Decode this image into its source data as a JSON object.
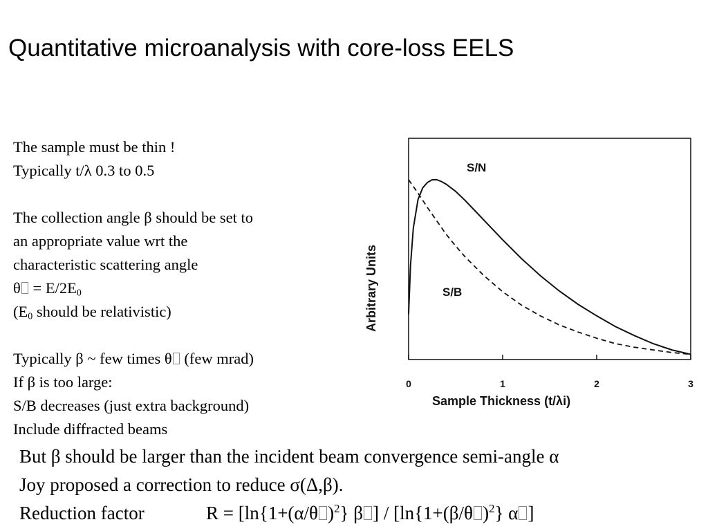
{
  "title": "Quantitative microanalysis with core-loss EELS",
  "left": {
    "l1": "The sample must be thin !",
    "l2": "Typically t/λ 0.3 to 0.5",
    "l3": "The collection angle β should be set to",
    "l4": "an appropriate value wrt the",
    "l5": "characteristic scattering angle",
    "l6a": "θ",
    "l6b": " = E/2E",
    "l6c": "0",
    "l7a": "(E",
    "l7b": "0",
    "l7c": " should be relativistic)",
    "l8a": "Typically β ~ few times θ",
    "l8b": " (few mrad)",
    "l9": "If β is too large:",
    "l10": "S/B decreases (just extra background)",
    "l11": "Include diffracted beams"
  },
  "bottom": {
    "b1": "But β should be larger than the incident beam convergence semi-angle α",
    "b2": "Joy proposed a correction to reduce σ(Δ,β).",
    "b3_label": "Reduction factor",
    "f1": "R = [ln{1+(α/θ",
    "f2": ")",
    "f3": "2",
    "f4": "} β",
    "f5": "] / [ln{1+(β/θ",
    "f6": ")",
    "f7": "2",
    "f8": "} α",
    "f9": "]"
  },
  "chart_data": {
    "type": "line",
    "xlabel": "Sample Thickness (t/λi)",
    "ylabel": "Arbitrary Units",
    "xlim": [
      0,
      3
    ],
    "ylim": [
      0,
      1
    ],
    "xticks": [
      "0",
      "1",
      "2",
      "3"
    ],
    "grid": false,
    "series": [
      {
        "name": "S/N",
        "style": "solid",
        "x": [
          0.0,
          0.02,
          0.05,
          0.1,
          0.15,
          0.2,
          0.25,
          0.3,
          0.35,
          0.4,
          0.5,
          0.6,
          0.7,
          0.8,
          1.0,
          1.2,
          1.4,
          1.6,
          1.8,
          2.0,
          2.2,
          2.4,
          2.6,
          2.8,
          3.0
        ],
        "y": [
          0.25,
          0.52,
          0.73,
          0.89,
          0.955,
          0.985,
          1.0,
          1.0,
          0.99,
          0.975,
          0.935,
          0.885,
          0.83,
          0.775,
          0.665,
          0.56,
          0.465,
          0.38,
          0.305,
          0.24,
          0.18,
          0.13,
          0.085,
          0.05,
          0.025
        ]
      },
      {
        "name": "S/B",
        "style": "dashed",
        "x": [
          0.0,
          0.1,
          0.2,
          0.3,
          0.4,
          0.5,
          0.6,
          0.8,
          1.0,
          1.2,
          1.4,
          1.6,
          1.8,
          2.0,
          2.2,
          2.4,
          2.6,
          2.8,
          3.0
        ],
        "y": [
          1.0,
          0.925,
          0.845,
          0.77,
          0.695,
          0.63,
          0.57,
          0.465,
          0.375,
          0.3,
          0.24,
          0.19,
          0.15,
          0.115,
          0.085,
          0.065,
          0.05,
          0.035,
          0.025
        ]
      }
    ]
  }
}
